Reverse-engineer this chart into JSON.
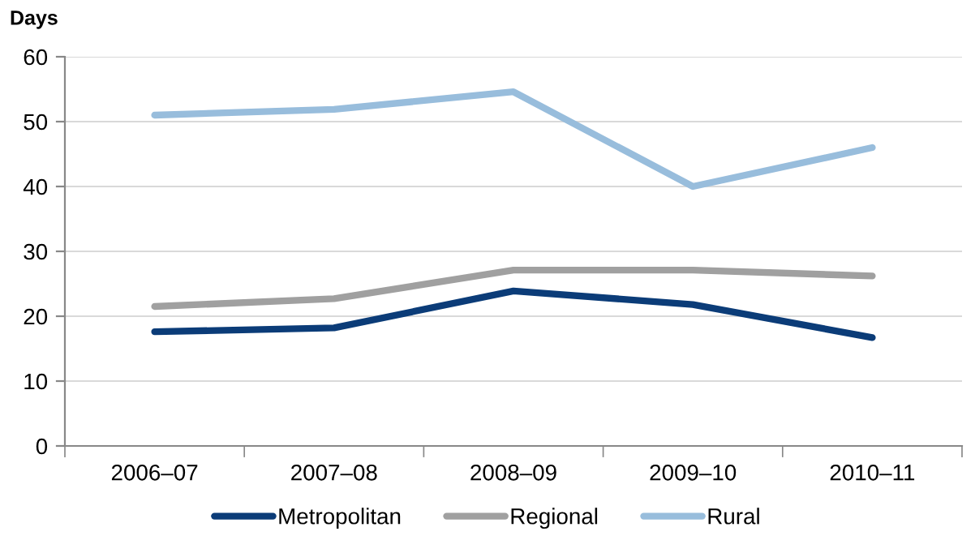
{
  "chart_data": {
    "type": "line",
    "ylabel": "Days",
    "categories": [
      "2006–07",
      "2007–08",
      "2008–09",
      "2009–10",
      "2010–11"
    ],
    "series": [
      {
        "name": "Metropolitan",
        "color": "#0b3c78",
        "values": [
          17.6,
          18.2,
          23.9,
          21.8,
          16.7
        ]
      },
      {
        "name": "Regional",
        "color": "#a0a0a0",
        "values": [
          21.5,
          22.7,
          27.1,
          27.1,
          26.2
        ]
      },
      {
        "name": "Rural",
        "color": "#98bddc",
        "values": [
          51,
          51.9,
          54.6,
          40,
          46
        ]
      }
    ],
    "ylim": [
      0,
      60
    ],
    "yticks": [
      0,
      10,
      20,
      30,
      40,
      50,
      60
    ],
    "grid": "y",
    "legend": "bottom",
    "marker": "none",
    "line_style": "solid"
  }
}
